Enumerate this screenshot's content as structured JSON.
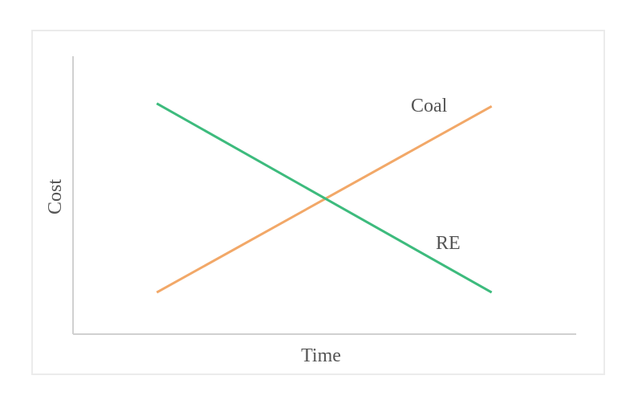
{
  "chart_data": {
    "type": "line",
    "title": "",
    "xlabel": "Time",
    "ylabel": "Cost",
    "xlim": [
      0,
      6
    ],
    "ylim": [
      0,
      10
    ],
    "grid": false,
    "legend": "inline labels",
    "series": [
      {
        "name": "Coal",
        "color": "#f2a868",
        "x": [
          1,
          5
        ],
        "y": [
          1.5,
          8.2
        ]
      },
      {
        "name": "RE",
        "color": "#3dbb7d",
        "x": [
          1,
          5
        ],
        "y": [
          8.3,
          1.5
        ]
      }
    ]
  }
}
